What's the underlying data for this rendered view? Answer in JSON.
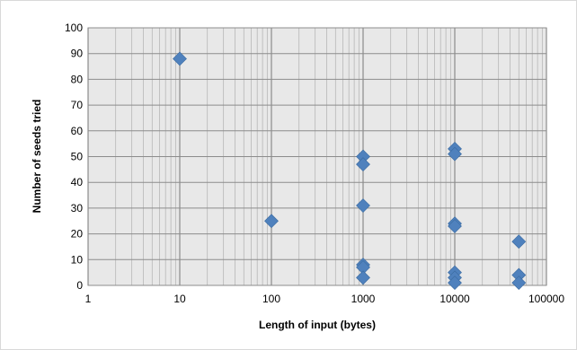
{
  "chart_data": {
    "type": "scatter",
    "title": "",
    "xlabel": "Length of input (bytes)",
    "ylabel": "Number of seeds tried",
    "x_scale": "log",
    "xlim": [
      1,
      100000
    ],
    "ylim": [
      0,
      100
    ],
    "x_ticks": [
      "1",
      "10",
      "100",
      "1000",
      "10000",
      "100000"
    ],
    "x_tick_values": [
      1,
      10,
      100,
      1000,
      10000,
      100000
    ],
    "y_ticks": [
      "0",
      "10",
      "20",
      "30",
      "40",
      "50",
      "60",
      "70",
      "80",
      "90",
      "100"
    ],
    "y_tick_values": [
      0,
      10,
      20,
      30,
      40,
      50,
      60,
      70,
      80,
      90,
      100
    ],
    "grid": true,
    "marker": "diamond",
    "marker_color": "#4f81bd",
    "plot_background": "#e8e8e8",
    "series": [
      {
        "x": [
          10,
          100,
          1000,
          1000,
          1000,
          1000,
          1000,
          1000,
          10000,
          10000,
          10000,
          10000,
          10000,
          10000,
          10000,
          50000,
          50000,
          50000
        ],
        "y": [
          88,
          25,
          50,
          47,
          31,
          8,
          7,
          3,
          53,
          51,
          24,
          23,
          5,
          3,
          1,
          17,
          4,
          1
        ]
      }
    ]
  }
}
